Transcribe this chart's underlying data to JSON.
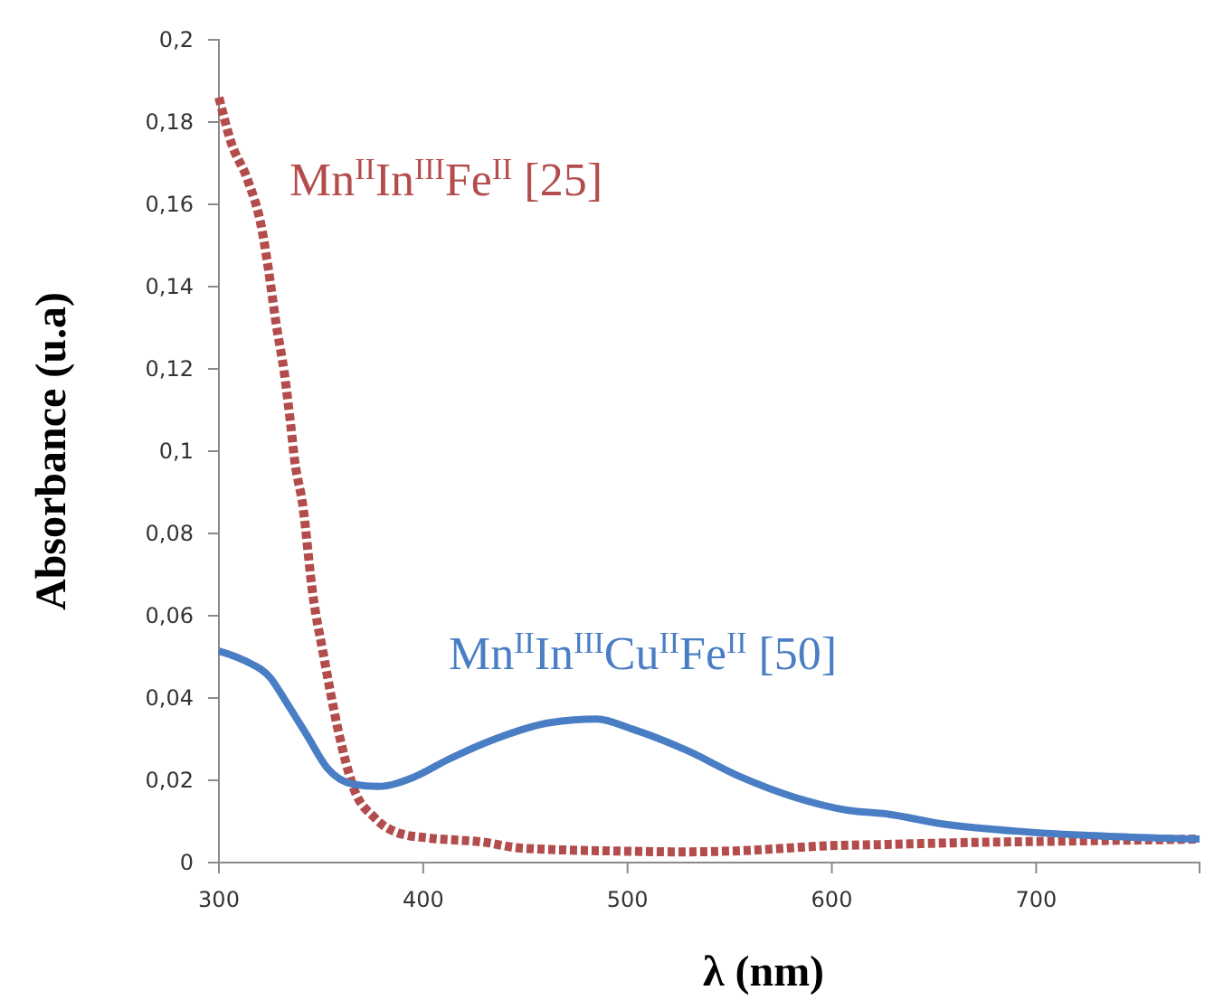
{
  "chart_data": {
    "type": "line",
    "xlabel": "λ (nm)",
    "ylabel": "Absorbance (u.a)",
    "xlim": [
      300,
      780
    ],
    "ylim": [
      0,
      0.2
    ],
    "xticks": [
      300,
      400,
      500,
      600,
      700
    ],
    "yticks": [
      0,
      {
        "value": 0.02,
        "label": "0,02"
      },
      {
        "value": 0.04,
        "label": "0,04"
      },
      {
        "value": 0.06,
        "label": "0,06"
      },
      {
        "value": 0.08,
        "label": "0,08"
      },
      {
        "value": 0.1,
        "label": "0,1"
      },
      {
        "value": 0.12,
        "label": "0,12"
      },
      {
        "value": 0.14,
        "label": "0,14"
      },
      {
        "value": 0.16,
        "label": "0,16"
      },
      {
        "value": 0.18,
        "label": "0,18"
      },
      {
        "value": 0.2,
        "label": "0,2"
      }
    ],
    "grid": false,
    "marker": "none",
    "series": [
      {
        "name": "Mn$^{II}$In$^{III}$Fe$^{II}$ [25]",
        "color": "#b34c4c",
        "line_style": "dotted",
        "x": [
          300,
          306,
          314,
          321,
          324,
          328,
          332,
          335,
          337,
          341,
          346,
          351,
          358,
          366,
          376,
          389,
          402,
          429,
          448,
          495,
          528,
          561,
          594,
          627,
          660,
          726,
          779
        ],
        "values": [
          0.186,
          0.175,
          0.166,
          0.154,
          0.145,
          0.131,
          0.119,
          0.107,
          0.098,
          0.087,
          0.065,
          0.051,
          0.033,
          0.018,
          0.011,
          0.007,
          0.006,
          0.005,
          0.0035,
          0.0028,
          0.0026,
          0.003,
          0.004,
          0.0044,
          0.0048,
          0.0053,
          0.0057
        ]
      },
      {
        "name": "Mn$^{II}$In$^{III}$Cu$^{II}$Fe$^{II}$ [50]",
        "color": "#4a7ec4",
        "line_style": "solid",
        "x": [
          300,
          313,
          325,
          333,
          343,
          353,
          366,
          378,
          396,
          412,
          435,
          462,
          485,
          502,
          528,
          555,
          581,
          608,
          627,
          654,
          694,
          726,
          780
        ],
        "values": [
          0.0514,
          0.049,
          0.045,
          0.039,
          0.031,
          0.023,
          0.019,
          0.0185,
          0.0209,
          0.025,
          0.03,
          0.034,
          0.0349,
          0.0325,
          0.0275,
          0.0209,
          0.016,
          0.0127,
          0.0118,
          0.0094,
          0.0075,
          0.0066,
          0.0057
        ]
      }
    ]
  }
}
